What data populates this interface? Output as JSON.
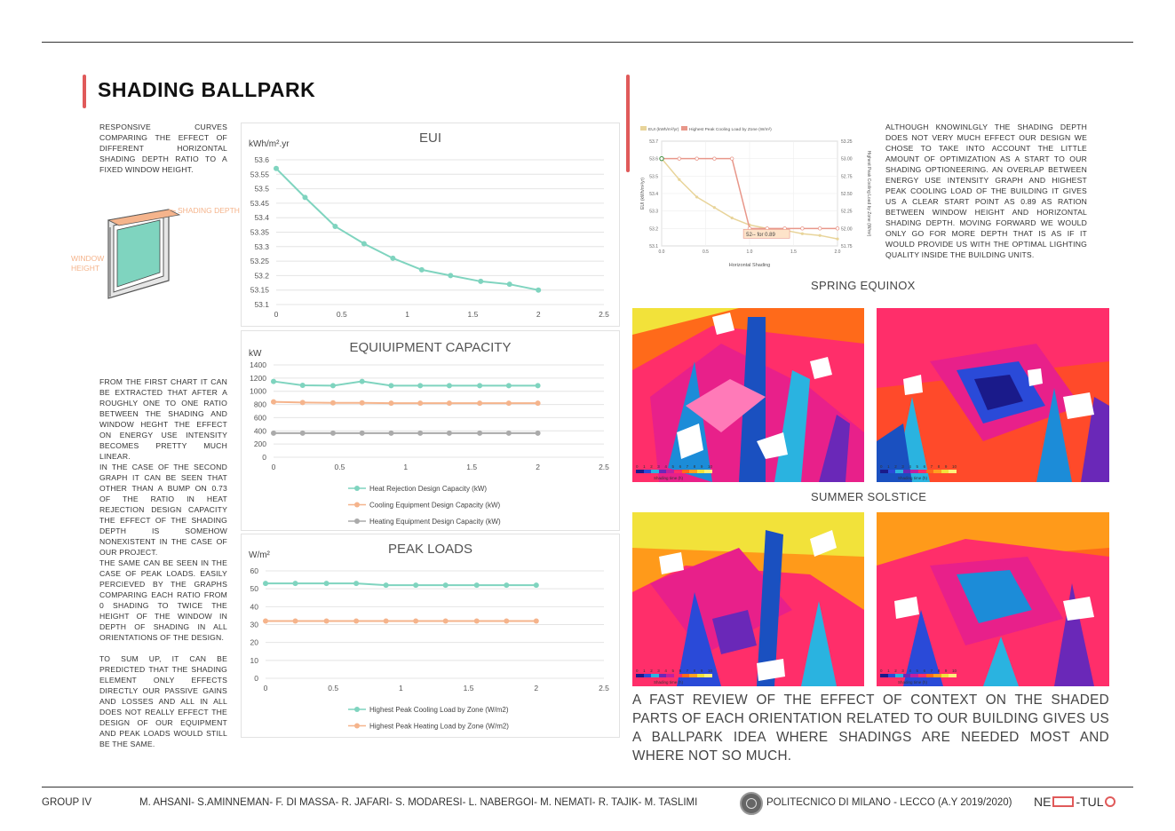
{
  "header": {
    "title": "SHADING BALLPARK"
  },
  "intro": {
    "text": "RESPONSIVE CURVES COMPARING THE EFFECT OF DIFFERENT HORIZONTAL SHADING DEPTH RATIO TO A FIXED WINDOW HEIGHT."
  },
  "diagram": {
    "shading_label": "SHADING DEPTH",
    "window_label_1": "WINDOW",
    "window_label_2": "HEIGHT"
  },
  "body_paragraphs": [
    "FROM THE FIRST CHART IT CAN BE EXTRACTED THAT AFTER A ROUGHLY ONE TO ONE RATIO BETWEEN THE SHADING AND WINDOW HEGHT THE EFFECT ON ENERGY USE INTENSITY BECOMES PRETTY MUCH LINEAR.",
    "IN THE CASE OF THE SECOND GRAPH IT CAN BE SEEN THAT OTHER THAN A BUMP ON 0.73 OF THE RATIO IN HEAT REJECTION DESIGN CAPACITY THE EFFECT OF THE SHADING DEPTH IS SOMEHOW NONEXISTENT IN THE CASE OF OUR PROJECT.",
    "THE SAME CAN BE SEEN IN THE CASE OF PEAK LOADS. EASILY PERCIEVED BY THE GRAPHS COMPARING EACH RATIO FROM 0 SHADING TO TWICE THE HEIGHT OF THE WINDOW IN DEPTH OF SHADING IN ALL ORIENTATIONS OF THE DESIGN.",
    "TO SUM UP, IT CAN BE PREDICTED THAT THE SHADING ELEMENT ONLY EFFECTS DIRECTLY OUR PASSIVE GAINS AND LOSSES AND ALL IN ALL DOES NOT REALLY EFFECT THE DESIGN OF OUR EQUIPMENT AND PEAK LOADS WOULD STILL BE THE SAME."
  ],
  "right_text": "ALTHOUGH KNOWINLGLY THE SHADING DEPTH DOES NOT VERY MUCH EFFECT OUR DESIGN WE CHOSE TO TAKE INTO ACCOUNT THE LITTLE AMOUNT OF OPTIMIZATION AS A START TO OUR SHADING OPTIONEERING. AN OVERLAP BETWEEN ENERGY USE INTENSITY GRAPH AND HIGHEST PEAK COOLING LOAD OF THE BUILDING IT GIVES US A CLEAR START POINT AS 0.89 AS RATION BETWEEN WINDOW HEIGHT AND HORIZONTAL SHADING DEPTH. MOVING FORWARD WE WOULD ONLY GO FOR MORE DEPTH THAT IS AS IF IT WOULD PROVIDE US WITH THE OPTIMAL LIGHTING QUALITY INSIDE THE BUILDING UNITS.",
  "sections": {
    "spring": "SPRING EQUINOX",
    "summer": "SUMMER SOLSTICE"
  },
  "caption": "A FAST REVIEW OF THE EFFECT OF CONTEXT ON THE SHADED PARTS OF EACH ORIENTATION RELATED TO OUR BUILDING GIVES US A BALLPARK IDEA WHERE SHADINGS ARE NEEDED MOST AND WHERE NOT SO MUCH.",
  "sim_legend": {
    "caption": "Shading time (h)",
    "ticks": [
      "0",
      "1",
      "2",
      "3",
      "4",
      "5",
      "6",
      "7",
      "8",
      "9",
      "10"
    ]
  },
  "colors": {
    "teal": "#7fd4bf",
    "orange": "#f5b48c",
    "gray": "#aaaaaa",
    "accent": "#e05a5a",
    "eui_line": "#e8d49a",
    "cooling_line": "#e8978a"
  },
  "footer": {
    "group": "GROUP IV",
    "authors": "M. AHSANI- S.AMINNEMAN- F. DI MASSA- R. JAFARI- S. MODARESI- L. NABERGOI- M. NEMATI- R. TAJIK- M. TASLIMI",
    "school": "POLITECNICO DI MILANO - LECCO (A.Y 2019/2020)",
    "logo_left": "NE",
    "logo_right": "-TUL"
  },
  "chart_data": [
    {
      "type": "line",
      "title": "EUI",
      "unit": "kWh/m².yr",
      "x": [
        0,
        0.22,
        0.45,
        0.67,
        0.89,
        1.11,
        1.33,
        1.56,
        1.78,
        2.0
      ],
      "xlim": [
        0,
        2.5
      ],
      "xticks": [
        "0",
        "0.5",
        "1",
        "1.5",
        "2",
        "2.5"
      ],
      "ylim": [
        53.1,
        53.6
      ],
      "yticks": [
        "53.1",
        "53.15",
        "53.2",
        "53.25",
        "53.3",
        "53.35",
        "53.4",
        "53.45",
        "53.5",
        "53.55",
        "53.6"
      ],
      "series": [
        {
          "values": [
            53.57,
            53.47,
            53.37,
            53.31,
            53.26,
            53.22,
            53.2,
            53.18,
            53.17,
            53.15
          ],
          "color": "#7fd4bf"
        }
      ]
    },
    {
      "type": "line",
      "title": "EQUIUIPMENT CAPACITY",
      "unit": "kW",
      "x": [
        0,
        0.22,
        0.45,
        0.67,
        0.89,
        1.11,
        1.33,
        1.56,
        1.78,
        2.0
      ],
      "xlim": [
        0,
        2.5
      ],
      "xticks": [
        "0",
        "0.5",
        "1",
        "1.5",
        "2",
        "2.5"
      ],
      "ylim": [
        0,
        1400
      ],
      "yticks": [
        "0",
        "200",
        "400",
        "600",
        "800",
        "1000",
        "1200",
        "1400"
      ],
      "series": [
        {
          "name": "Heat Rejection Design Capacity (kW)",
          "values": [
            1150,
            1090,
            1085,
            1150,
            1085,
            1085,
            1085,
            1085,
            1085,
            1085
          ],
          "color": "#7fd4bf"
        },
        {
          "name": "Cooling Equipment Design Capacity (kW)",
          "values": [
            840,
            830,
            825,
            825,
            820,
            820,
            820,
            820,
            820,
            820
          ],
          "color": "#f5b48c"
        },
        {
          "name": "Heating Equipment Design Capacity (kW)",
          "values": [
            365,
            365,
            365,
            365,
            365,
            365,
            365,
            365,
            365,
            365
          ],
          "color": "#aaaaaa"
        }
      ]
    },
    {
      "type": "line",
      "title": "PEAK LOADS",
      "unit": "W/m²",
      "x": [
        0,
        0.22,
        0.45,
        0.67,
        0.89,
        1.11,
        1.33,
        1.56,
        1.78,
        2.0
      ],
      "xlim": [
        0,
        2.5
      ],
      "xticks": [
        "0",
        "0.5",
        "1",
        "1.5",
        "2",
        "2.5"
      ],
      "ylim": [
        0,
        60
      ],
      "yticks": [
        "0",
        "10",
        "20",
        "30",
        "40",
        "50",
        "60"
      ],
      "series": [
        {
          "name": "Highest Peak Cooling Load by Zone (W/m2)",
          "values": [
            53,
            53,
            53,
            53,
            52,
            52,
            52,
            52,
            52,
            52
          ],
          "color": "#7fd4bf"
        },
        {
          "name": "Highest Peak Heating Load by Zone (W/m2)",
          "values": [
            32,
            32,
            32,
            32,
            32,
            32,
            32,
            32,
            32,
            32
          ],
          "color": "#f5b48c"
        }
      ]
    },
    {
      "type": "line",
      "legend": [
        "EUI (kWh/m²/yr)",
        "Highest Peak Cooling Load by Zone (W/m²)"
      ],
      "xlabel": "Horizontal Shading",
      "ylabel": "EUI (kWh/m²/yr)",
      "y2label": "Highest Peak Cooling Load by Zone (W/m²)",
      "annotation": "52-- for 0.89",
      "x": [
        0,
        0.2,
        0.4,
        0.6,
        0.8,
        1.0,
        1.2,
        1.4,
        1.6,
        1.8,
        2.0
      ],
      "xlim": [
        0,
        2.0
      ],
      "xticks": [
        "0.0",
        "0.5",
        "1.0",
        "1.5",
        "2.0"
      ],
      "ylim": [
        53.1,
        53.7
      ],
      "yticks": [
        "53.1",
        "53.2",
        "53.3",
        "53.4",
        "53.5",
        "53.6",
        "53.7"
      ],
      "y2lim": [
        51.75,
        53.25
      ],
      "y2ticks": [
        "51.75",
        "52.00",
        "52.25",
        "52.50",
        "52.75",
        "53.00",
        "53.25"
      ],
      "series": [
        {
          "name": "EUI (kWh/m²/yr)",
          "values": [
            53.6,
            53.48,
            53.38,
            53.32,
            53.26,
            53.22,
            53.2,
            53.19,
            53.17,
            53.16,
            53.14
          ],
          "color": "#e8d49a"
        },
        {
          "name": "Highest Peak Cooling Load by Zone (W/m²)",
          "values": [
            53.0,
            53.0,
            53.0,
            53.0,
            53.0,
            52.0,
            52.0,
            52.0,
            52.0,
            52.0,
            52.0
          ],
          "color": "#e8978a"
        }
      ]
    }
  ]
}
